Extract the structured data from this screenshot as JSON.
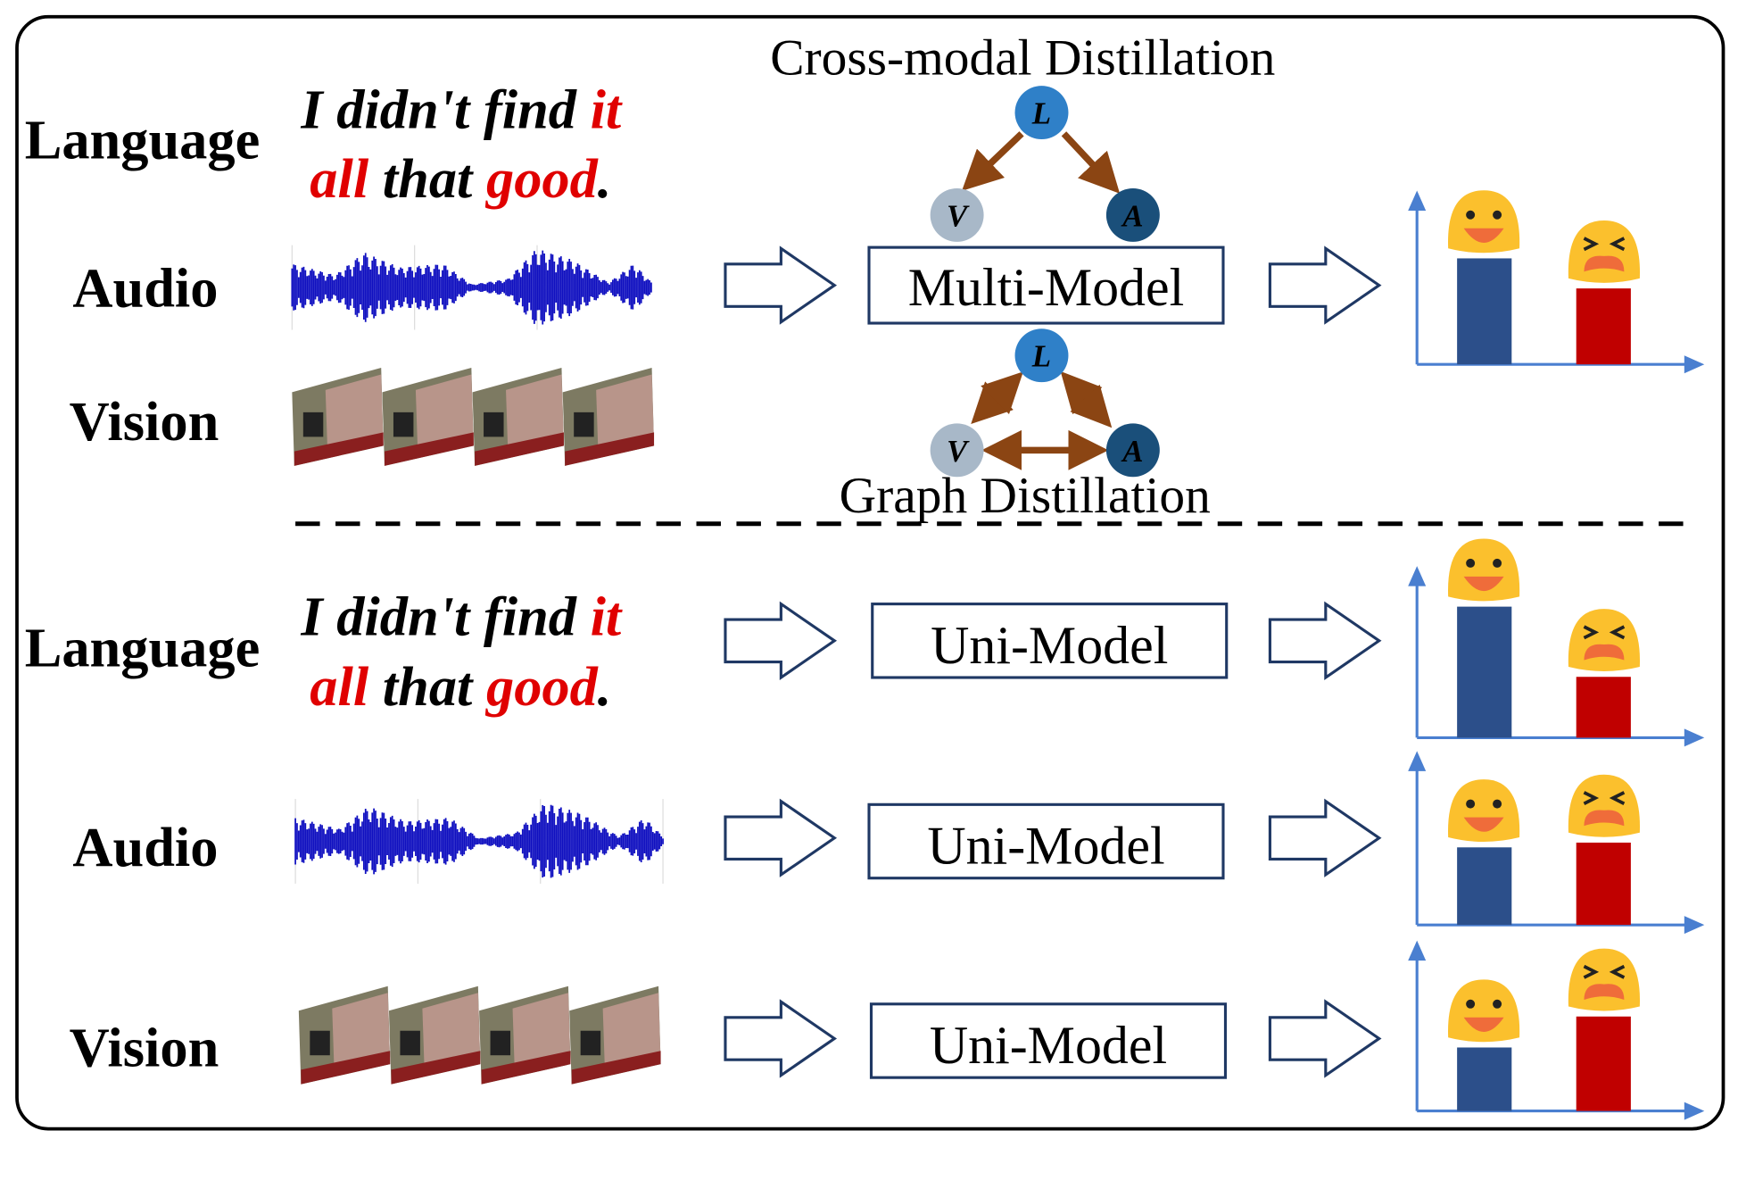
{
  "multimodal_section": {
    "labels": {
      "language": "Language",
      "audio": "Audio",
      "vision": "Vision"
    },
    "sentence": {
      "w1": "I didn't find ",
      "w2": "it",
      "w3": "all",
      "w4": " that ",
      "w5": "good",
      "w6": "."
    },
    "model_label": "Multi-Model",
    "top_title": "Cross-modal Distillation",
    "bottom_title": "Graph Distillation",
    "nodes": {
      "l": "L",
      "v": "V",
      "a": "A"
    },
    "prediction": {
      "positive": 0.67,
      "negative": 0.48
    }
  },
  "unimodal_section": {
    "rows": [
      {
        "label": "Language",
        "model_label": "Uni-Model",
        "prediction": {
          "positive": 0.84,
          "negative": 0.39
        }
      },
      {
        "label": "Audio",
        "model_label": "Uni-Model",
        "prediction": {
          "positive": 0.49,
          "negative": 0.52
        }
      },
      {
        "label": "Vision",
        "model_label": "Uni-Model",
        "prediction": {
          "positive": 0.41,
          "negative": 0.61
        }
      }
    ],
    "sentence": {
      "w1": "I didn't find ",
      "w2": "it",
      "w3": "all",
      "w4": " that ",
      "w5": "good",
      "w6": "."
    }
  },
  "colors": {
    "positive_bar": "#2c4f8a",
    "negative_bar": "#c00000",
    "arrow": "#8b4513",
    "axis": "#4a7fd0",
    "node_l": "#2f80c8",
    "node_v": "#a8b8c8",
    "node_a": "#1a4f7a"
  }
}
